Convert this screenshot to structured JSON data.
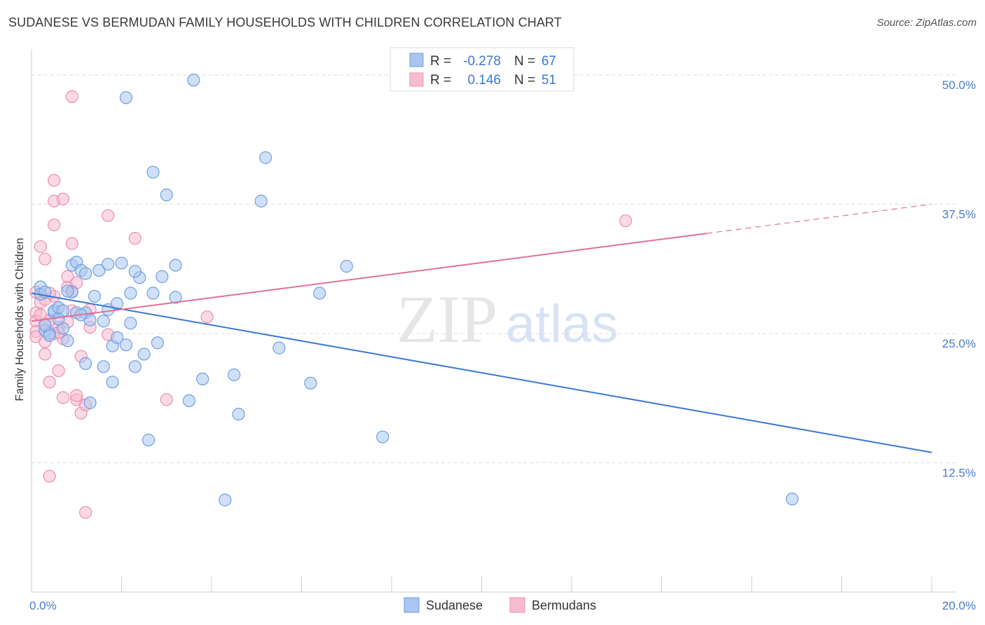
{
  "header": {
    "title": "SUDANESE VS BERMUDAN FAMILY HOUSEHOLDS WITH CHILDREN CORRELATION CHART",
    "source": "Source: ZipAtlas.com"
  },
  "watermark": {
    "zip": "ZIP",
    "atlas": "atlas"
  },
  "legend": {
    "rows": [
      {
        "r_label": "R =",
        "r_value": "-0.278",
        "n_label": "N =",
        "n_value": "67"
      },
      {
        "r_label": "R =",
        "r_value": "0.146",
        "n_label": "N =",
        "n_value": "51"
      }
    ]
  },
  "bottom_legend": {
    "items": [
      "Sudanese",
      "Bermudans"
    ]
  },
  "colors": {
    "sudanese_fill": "#a9c6f0",
    "sudanese_stroke": "#6f9fe0",
    "sudanese_line": "#3a78d4",
    "bermudan_fill": "#f7bcd0",
    "bermudan_stroke": "#ec8fb0",
    "bermudan_line": "#e0709a",
    "accent_text": "#3a78d4"
  },
  "chart_data": {
    "type": "scatter",
    "title": "SUDANESE VS BERMUDAN FAMILY HOUSEHOLDS WITH CHILDREN CORRELATION CHART",
    "xlabel": "",
    "ylabel": "Family Households with Children",
    "xlim": [
      0,
      20
    ],
    "ylim": [
      0,
      52.5
    ],
    "x_tick_labels": [
      "0.0%",
      "20.0%"
    ],
    "y_ticks": [
      12.5,
      25.0,
      37.5,
      50.0
    ],
    "y_tick_labels": [
      "12.5%",
      "25.0%",
      "37.5%",
      "50.0%"
    ],
    "grid": "horizontal dashed",
    "legend_position": "top-center",
    "series": [
      {
        "name": "Sudanese",
        "R": -0.278,
        "N": 67,
        "trend": {
          "x": [
            0,
            20
          ],
          "y": [
            28.9,
            13.5
          ],
          "dashed_from": null
        },
        "points": [
          [
            0.2,
            29.5
          ],
          [
            0.2,
            28.8
          ],
          [
            0.3,
            29.0
          ],
          [
            0.3,
            25.3
          ],
          [
            0.4,
            25.0
          ],
          [
            0.4,
            24.8
          ],
          [
            0.5,
            27.0
          ],
          [
            0.5,
            27.2
          ],
          [
            0.6,
            27.5
          ],
          [
            0.7,
            27.2
          ],
          [
            0.7,
            25.5
          ],
          [
            0.8,
            24.3
          ],
          [
            0.9,
            31.6
          ],
          [
            0.9,
            29.0
          ],
          [
            1.0,
            27.0
          ],
          [
            1.0,
            31.9
          ],
          [
            1.1,
            31.1
          ],
          [
            1.2,
            30.8
          ],
          [
            1.2,
            27.0
          ],
          [
            1.2,
            22.1
          ],
          [
            1.3,
            26.3
          ],
          [
            1.3,
            18.3
          ],
          [
            1.4,
            28.6
          ],
          [
            1.5,
            31.1
          ],
          [
            1.6,
            26.2
          ],
          [
            1.6,
            21.8
          ],
          [
            1.7,
            27.3
          ],
          [
            1.7,
            31.7
          ],
          [
            1.8,
            23.8
          ],
          [
            1.8,
            20.3
          ],
          [
            1.9,
            27.9
          ],
          [
            1.9,
            24.6
          ],
          [
            2.0,
            31.8
          ],
          [
            2.1,
            23.9
          ],
          [
            2.1,
            47.8
          ],
          [
            2.2,
            28.9
          ],
          [
            2.2,
            26.0
          ],
          [
            2.3,
            21.8
          ],
          [
            2.4,
            30.4
          ],
          [
            2.5,
            23.0
          ],
          [
            2.6,
            14.7
          ],
          [
            2.7,
            40.6
          ],
          [
            2.7,
            28.9
          ],
          [
            2.8,
            24.1
          ],
          [
            2.9,
            30.5
          ],
          [
            3.0,
            38.4
          ],
          [
            3.2,
            28.5
          ],
          [
            3.2,
            31.6
          ],
          [
            3.5,
            18.5
          ],
          [
            3.6,
            49.5
          ],
          [
            3.8,
            20.6
          ],
          [
            4.3,
            8.9
          ],
          [
            4.5,
            21.0
          ],
          [
            4.6,
            17.2
          ],
          [
            5.1,
            37.8
          ],
          [
            5.2,
            42.0
          ],
          [
            5.5,
            23.6
          ],
          [
            6.2,
            20.2
          ],
          [
            6.4,
            28.9
          ],
          [
            7.0,
            31.5
          ],
          [
            7.8,
            15.0
          ],
          [
            16.9,
            9.0
          ],
          [
            0.3,
            25.8
          ],
          [
            0.6,
            26.4
          ],
          [
            1.1,
            26.8
          ],
          [
            0.8,
            29.1
          ],
          [
            2.3,
            31.0
          ]
        ]
      },
      {
        "name": "Bermudans",
        "R": 0.146,
        "N": 51,
        "trend": {
          "x": [
            0,
            20
          ],
          "y": [
            26.2,
            37.5
          ],
          "dashed_from": 15
        },
        "points": [
          [
            0.1,
            29.0
          ],
          [
            0.1,
            27.0
          ],
          [
            0.1,
            26.2
          ],
          [
            0.1,
            25.2
          ],
          [
            0.1,
            24.7
          ],
          [
            0.2,
            28.0
          ],
          [
            0.2,
            33.4
          ],
          [
            0.3,
            28.3
          ],
          [
            0.3,
            32.2
          ],
          [
            0.3,
            26.0
          ],
          [
            0.3,
            24.2
          ],
          [
            0.3,
            23.0
          ],
          [
            0.4,
            20.3
          ],
          [
            0.4,
            11.2
          ],
          [
            0.4,
            26.3
          ],
          [
            0.5,
            25.0
          ],
          [
            0.5,
            37.8
          ],
          [
            0.5,
            39.8
          ],
          [
            0.5,
            35.5
          ],
          [
            0.5,
            28.6
          ],
          [
            0.6,
            27.5
          ],
          [
            0.6,
            21.4
          ],
          [
            0.6,
            25.6
          ],
          [
            0.7,
            38.0
          ],
          [
            0.7,
            24.5
          ],
          [
            0.7,
            18.8
          ],
          [
            0.8,
            26.1
          ],
          [
            0.8,
            29.5
          ],
          [
            0.8,
            30.5
          ],
          [
            0.9,
            47.9
          ],
          [
            0.9,
            33.7
          ],
          [
            0.9,
            29.1
          ],
          [
            0.9,
            27.2
          ],
          [
            1.0,
            18.6
          ],
          [
            1.0,
            19.0
          ],
          [
            1.1,
            17.3
          ],
          [
            1.1,
            22.8
          ],
          [
            1.2,
            18.1
          ],
          [
            1.2,
            7.7
          ],
          [
            1.3,
            25.6
          ],
          [
            1.3,
            27.3
          ],
          [
            1.7,
            24.9
          ],
          [
            1.7,
            36.4
          ],
          [
            2.3,
            34.2
          ],
          [
            3.0,
            18.6
          ],
          [
            3.9,
            26.6
          ],
          [
            13.2,
            35.9
          ],
          [
            0.2,
            26.8
          ],
          [
            0.4,
            28.9
          ],
          [
            0.6,
            25.1
          ],
          [
            1.0,
            29.9
          ]
        ]
      }
    ]
  }
}
